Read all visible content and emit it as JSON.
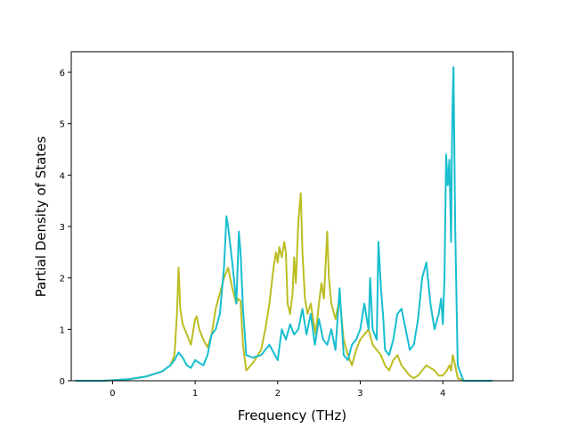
{
  "chart_data": {
    "type": "line",
    "title": "",
    "xlabel": "Frequency (THz)",
    "ylabel": "Partial Density of States",
    "xlim": [
      -0.5,
      4.85
    ],
    "ylim": [
      0,
      6.4
    ],
    "xticks": [
      0,
      1,
      2,
      3,
      4
    ],
    "yticks": [
      0,
      1,
      2,
      3,
      4,
      5,
      6
    ],
    "xtick_labels": [
      "0",
      "1",
      "2",
      "3",
      "4"
    ],
    "ytick_labels": [
      "0",
      "1",
      "2",
      "3",
      "4",
      "5",
      "6"
    ],
    "grid": false,
    "legend": "none",
    "series": [
      {
        "color": "#bcbd22",
        "x": [
          -0.45,
          -0.1,
          0.0,
          0.2,
          0.4,
          0.6,
          0.7,
          0.75,
          0.78,
          0.8,
          0.82,
          0.85,
          0.9,
          0.95,
          1.0,
          1.02,
          1.05,
          1.1,
          1.15,
          1.2,
          1.25,
          1.3,
          1.35,
          1.4,
          1.45,
          1.5,
          1.52,
          1.55,
          1.58,
          1.62,
          1.7,
          1.8,
          1.85,
          1.9,
          1.95,
          1.98,
          2.0,
          2.02,
          2.05,
          2.08,
          2.1,
          2.12,
          2.15,
          2.18,
          2.2,
          2.22,
          2.25,
          2.28,
          2.3,
          2.33,
          2.36,
          2.4,
          2.43,
          2.46,
          2.5,
          2.53,
          2.56,
          2.6,
          2.62,
          2.65,
          2.7,
          2.75,
          2.8,
          2.85,
          2.9,
          2.95,
          3.0,
          3.05,
          3.1,
          3.15,
          3.2,
          3.25,
          3.3,
          3.35,
          3.4,
          3.45,
          3.5,
          3.55,
          3.6,
          3.65,
          3.7,
          3.75,
          3.8,
          3.85,
          3.9,
          3.95,
          4.0,
          4.05,
          4.08,
          4.1,
          4.12,
          4.15,
          4.18,
          4.25,
          4.6
        ],
        "y": [
          0.0,
          0.0,
          0.01,
          0.03,
          0.08,
          0.18,
          0.3,
          0.5,
          1.3,
          2.2,
          1.4,
          1.1,
          0.9,
          0.7,
          1.2,
          1.25,
          1.0,
          0.8,
          0.65,
          0.9,
          1.4,
          1.7,
          2.0,
          2.2,
          1.8,
          1.5,
          1.6,
          1.55,
          0.7,
          0.2,
          0.35,
          0.6,
          1.0,
          1.5,
          2.2,
          2.5,
          2.3,
          2.6,
          2.4,
          2.7,
          2.5,
          1.5,
          1.3,
          1.7,
          2.4,
          1.9,
          3.1,
          3.65,
          2.5,
          1.6,
          1.3,
          1.5,
          1.2,
          0.9,
          1.5,
          1.9,
          1.6,
          2.9,
          2.0,
          1.5,
          1.2,
          1.6,
          0.8,
          0.5,
          0.3,
          0.6,
          0.8,
          0.9,
          1.0,
          0.7,
          0.6,
          0.5,
          0.3,
          0.2,
          0.4,
          0.5,
          0.3,
          0.2,
          0.1,
          0.05,
          0.1,
          0.2,
          0.3,
          0.25,
          0.2,
          0.1,
          0.1,
          0.2,
          0.3,
          0.2,
          0.5,
          0.3,
          0.05,
          0.0,
          0.0
        ]
      },
      {
        "color": "#17becf",
        "x": [
          -0.45,
          -0.1,
          0.0,
          0.2,
          0.4,
          0.6,
          0.7,
          0.75,
          0.8,
          0.85,
          0.9,
          0.95,
          1.0,
          1.05,
          1.1,
          1.15,
          1.2,
          1.25,
          1.3,
          1.35,
          1.38,
          1.4,
          1.45,
          1.5,
          1.53,
          1.55,
          1.58,
          1.62,
          1.7,
          1.8,
          1.9,
          2.0,
          2.05,
          2.1,
          2.15,
          2.2,
          2.25,
          2.3,
          2.35,
          2.4,
          2.45,
          2.5,
          2.55,
          2.6,
          2.65,
          2.7,
          2.75,
          2.8,
          2.85,
          2.9,
          2.95,
          3.0,
          3.05,
          3.1,
          3.12,
          3.15,
          3.2,
          3.22,
          3.25,
          3.28,
          3.3,
          3.35,
          3.4,
          3.45,
          3.5,
          3.55,
          3.6,
          3.65,
          3.7,
          3.75,
          3.8,
          3.85,
          3.9,
          3.95,
          3.98,
          4.0,
          4.02,
          4.04,
          4.06,
          4.08,
          4.1,
          4.11,
          4.12,
          4.13,
          4.15,
          4.18,
          4.25,
          4.6
        ],
        "y": [
          0.0,
          0.0,
          0.01,
          0.03,
          0.08,
          0.18,
          0.3,
          0.4,
          0.55,
          0.45,
          0.3,
          0.25,
          0.4,
          0.35,
          0.3,
          0.5,
          0.9,
          1.0,
          1.3,
          2.2,
          3.2,
          3.0,
          2.3,
          1.5,
          2.9,
          2.5,
          1.4,
          0.5,
          0.45,
          0.5,
          0.7,
          0.4,
          1.0,
          0.8,
          1.1,
          0.9,
          1.0,
          1.4,
          0.9,
          1.3,
          0.7,
          1.2,
          0.8,
          0.7,
          1.0,
          0.6,
          1.8,
          0.5,
          0.4,
          0.7,
          0.8,
          1.0,
          1.5,
          1.0,
          2.0,
          1.0,
          0.8,
          2.7,
          1.8,
          1.2,
          0.6,
          0.5,
          0.8,
          1.3,
          1.4,
          1.0,
          0.6,
          0.7,
          1.2,
          2.0,
          2.3,
          1.5,
          1.0,
          1.3,
          1.6,
          1.1,
          2.0,
          4.4,
          3.8,
          4.3,
          2.7,
          4.5,
          5.5,
          6.1,
          3.0,
          0.3,
          0.0,
          0.0
        ]
      }
    ]
  }
}
